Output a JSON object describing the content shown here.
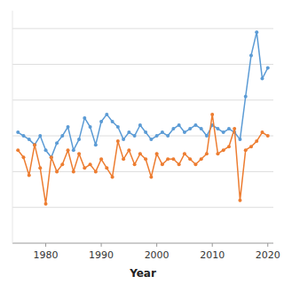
{
  "chart_data": {
    "type": "line",
    "x": [
      1975,
      1976,
      1977,
      1978,
      1979,
      1980,
      1981,
      1982,
      1983,
      1984,
      1985,
      1986,
      1987,
      1988,
      1989,
      1990,
      1991,
      1992,
      1993,
      1994,
      1995,
      1996,
      1997,
      1998,
      1999,
      2000,
      2001,
      2002,
      2003,
      2004,
      2005,
      2006,
      2007,
      2008,
      2009,
      2010,
      2011,
      2012,
      2013,
      2014,
      2015,
      2016,
      2017,
      2018,
      2019,
      2020
    ],
    "series": [
      {
        "color": "#5B9BD5",
        "values": [
          62,
          60,
          58,
          55,
          60,
          52,
          48,
          56,
          60,
          65,
          52,
          58,
          70,
          65,
          55,
          68,
          72,
          68,
          65,
          58,
          62,
          60,
          66,
          62,
          58,
          60,
          62,
          60,
          64,
          66,
          62,
          64,
          66,
          64,
          60,
          66,
          64,
          62,
          64,
          62,
          58,
          82,
          105,
          118,
          92,
          98
        ]
      },
      {
        "color": "#ED7D31",
        "values": [
          52,
          48,
          38,
          55,
          42,
          22,
          48,
          40,
          44,
          52,
          40,
          50,
          42,
          44,
          40,
          47,
          42,
          37,
          57,
          47,
          52,
          44,
          50,
          47,
          37,
          50,
          44,
          47,
          47,
          44,
          50,
          47,
          44,
          47,
          50,
          72,
          50,
          52,
          54,
          64,
          24,
          52,
          54,
          57,
          62,
          60
        ]
      }
    ],
    "xlabel": "Year",
    "xlim": [
      1974,
      2021
    ],
    "xticks": [
      1980,
      1990,
      2000,
      2010,
      2020
    ],
    "ylim": [
      0,
      130
    ],
    "yticks": [
      20,
      40,
      60,
      80,
      100,
      120
    ],
    "grid": true,
    "tick_labels": "x",
    "marker": "circle"
  }
}
